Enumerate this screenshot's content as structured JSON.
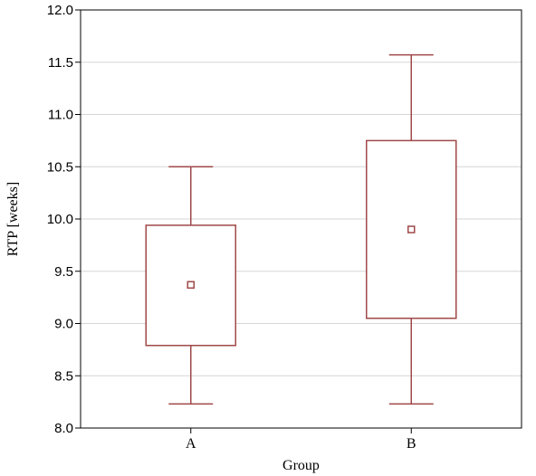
{
  "chart_data": {
    "type": "box",
    "xlabel": "Group",
    "ylabel": "RTP [weeks]",
    "ylim": [
      8.0,
      12.0
    ],
    "yticks": [
      "8.0",
      "8.5",
      "9.0",
      "9.5",
      "10.0",
      "10.5",
      "11.0",
      "11.5",
      "12.0"
    ],
    "grid": true,
    "categories": [
      "A",
      "B"
    ],
    "boxes": [
      {
        "category": "A",
        "whisker_low": 8.23,
        "q1": 8.79,
        "center": 9.37,
        "q3": 9.94,
        "whisker_high": 10.5
      },
      {
        "category": "B",
        "whisker_low": 8.23,
        "q1": 9.05,
        "center": 9.9,
        "q3": 10.75,
        "whisker_high": 11.57
      }
    ],
    "colors": {
      "box": "#a04848",
      "grid": "#d6d6d6",
      "frame": "#000000"
    }
  }
}
